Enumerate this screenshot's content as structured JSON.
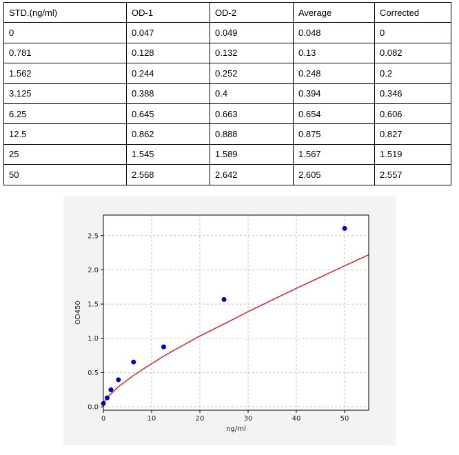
{
  "table": {
    "headers": [
      "STD.(ng/ml)",
      "OD-1",
      "OD-2",
      "Average",
      "Corrected"
    ],
    "rows": [
      [
        "0",
        "0.047",
        "0.049",
        "0.048",
        "0"
      ],
      [
        "0.781",
        "0.128",
        "0.132",
        "0.13",
        "0.082"
      ],
      [
        "1.562",
        "0.244",
        "0.252",
        "0.248",
        "0.2"
      ],
      [
        "3.125",
        "0.388",
        "0.4",
        "0.394",
        "0.346"
      ],
      [
        "6.25",
        "0.645",
        "0.663",
        "0.654",
        "0.606"
      ],
      [
        "12.5",
        "0.862",
        "0.888",
        "0.875",
        "0.827"
      ],
      [
        "25",
        "1.545",
        "1.589",
        "1.567",
        "1.519"
      ],
      [
        "50",
        "2.568",
        "2.642",
        "2.605",
        "2.557"
      ]
    ]
  },
  "chart_data": {
    "type": "scatter",
    "title": "",
    "xlabel": "ng/ml",
    "ylabel": "OD450",
    "xlim": [
      0,
      55
    ],
    "ylim": [
      -0.05,
      2.8
    ],
    "xticks": [
      0,
      10,
      20,
      30,
      40,
      50
    ],
    "yticks": [
      0.0,
      0.5,
      1.0,
      1.5,
      2.0,
      2.5
    ],
    "grid": true,
    "legend": "none",
    "points": {
      "x": [
        0,
        0.781,
        1.562,
        3.125,
        6.25,
        12.5,
        25,
        50
      ],
      "y": [
        0.048,
        0.13,
        0.248,
        0.394,
        0.654,
        0.875,
        1.567,
        2.605
      ],
      "color": "#0000cc"
    },
    "fit_curve": {
      "x": [
        0,
        0.5,
        1,
        2,
        3,
        4,
        6,
        8,
        10,
        12.5,
        15,
        20,
        25,
        30,
        35,
        40,
        45,
        50,
        55
      ],
      "y": [
        0.05,
        0.105,
        0.15,
        0.22,
        0.285,
        0.34,
        0.445,
        0.54,
        0.63,
        0.74,
        0.84,
        1.035,
        1.21,
        1.39,
        1.56,
        1.73,
        1.895,
        2.06,
        2.22
      ],
      "color": "#dd2222"
    }
  }
}
